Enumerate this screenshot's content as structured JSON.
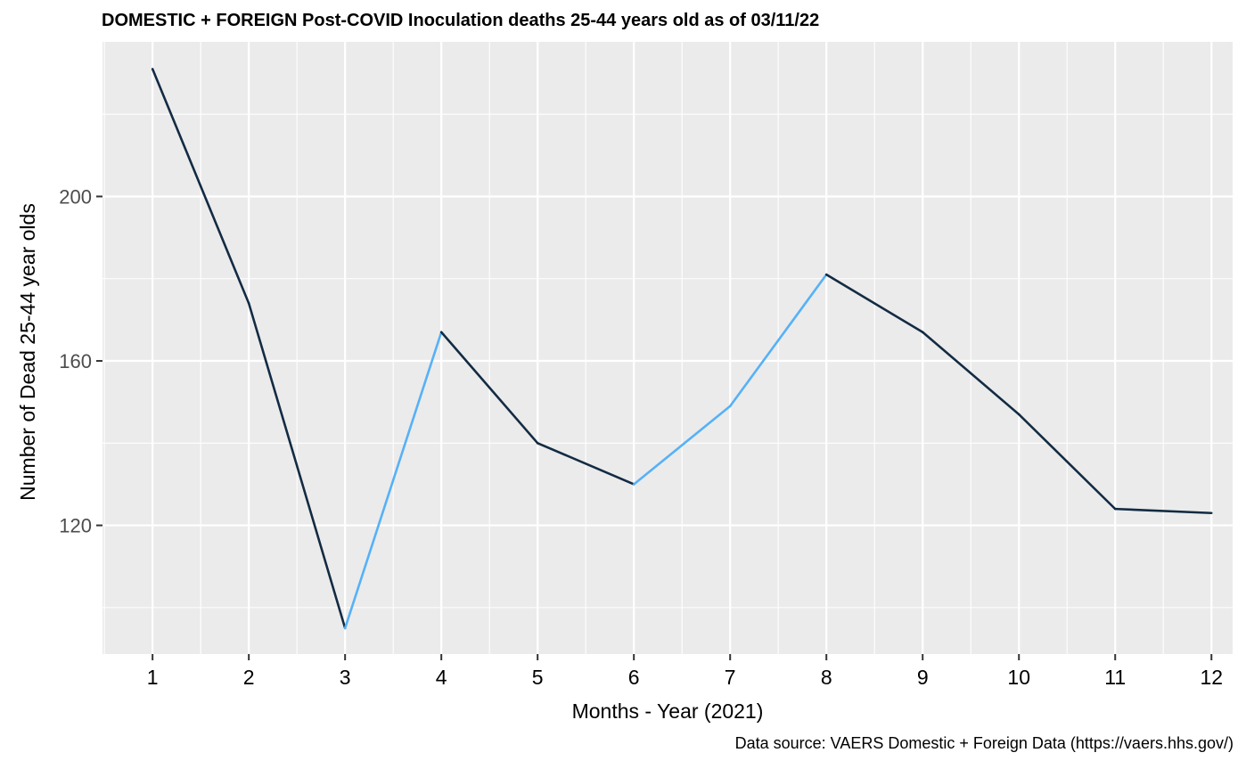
{
  "chart_data": {
    "type": "line",
    "title": "DOMESTIC + FOREIGN Post-COVID Inoculation deaths 25-44 years old as of 03/11/22",
    "caption": "Data source: VAERS Domestic + Foreign Data (https://vaers.hhs.gov/)",
    "xlabel": "Months - Year (2021)",
    "ylabel": "Number of Dead 25-44 year olds",
    "x": [
      1,
      2,
      3,
      4,
      5,
      6,
      7,
      8,
      9,
      10,
      11,
      12
    ],
    "values": [
      231,
      174,
      95,
      167,
      140,
      130,
      149,
      181,
      167,
      147,
      124,
      123
    ],
    "xticks": [
      "1",
      "2",
      "3",
      "4",
      "5",
      "6",
      "7",
      "8",
      "9",
      "10",
      "11",
      "12"
    ],
    "yticks": [
      120,
      160,
      200
    ],
    "xlim": [
      0.48,
      12.22
    ],
    "ylim": [
      88.7,
      237.6
    ],
    "grid": true,
    "panel_background": "#EBEBEB",
    "gridline_color": "#FFFFFF",
    "line_colors": {
      "falling": "#132B43",
      "rising": "#56B1F7"
    }
  }
}
